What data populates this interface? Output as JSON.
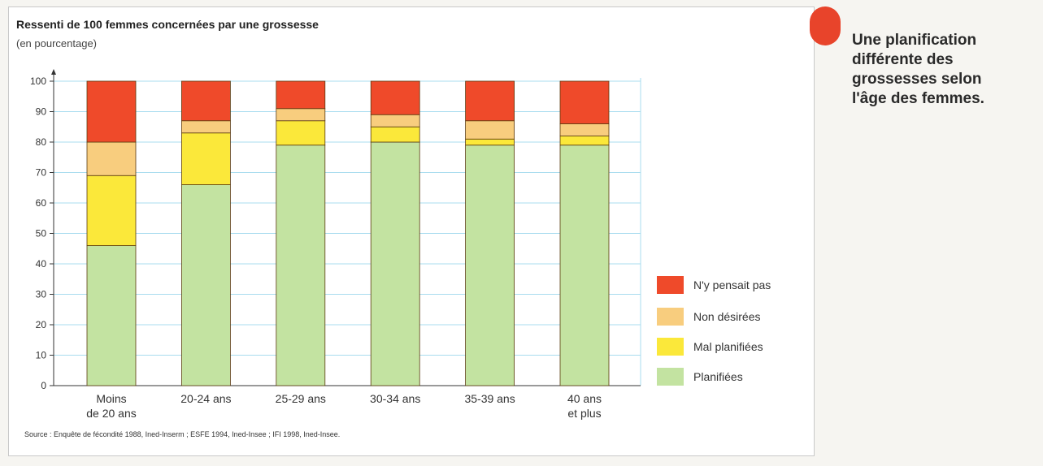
{
  "chart_data": {
    "type": "bar",
    "stacked": true,
    "title": "Ressenti de 100 femmes concernées par une grossesse",
    "subtitle": "(en pourcentage)",
    "categories": [
      [
        "Moins",
        "de 20 ans"
      ],
      [
        "20-24 ans"
      ],
      [
        "25-29 ans"
      ],
      [
        "30-34 ans"
      ],
      [
        "35-39 ans"
      ],
      [
        "40 ans",
        "et plus"
      ]
    ],
    "series": [
      {
        "name": "Planifiées",
        "color": "#c3e3a1",
        "values": [
          46,
          66,
          79,
          80,
          79,
          79
        ]
      },
      {
        "name": "Mal planifiées",
        "color": "#fbe83a",
        "values": [
          23,
          17,
          8,
          5,
          2,
          3
        ]
      },
      {
        "name": "Non désirées",
        "color": "#f8cd7e",
        "values": [
          11,
          4,
          4,
          4,
          6,
          4
        ]
      },
      {
        "name": "N'y pensait pas",
        "color": "#ef4a2a",
        "values": [
          20,
          13,
          9,
          11,
          13,
          14
        ]
      }
    ],
    "ylim": [
      0,
      100
    ],
    "yticks": [
      0,
      10,
      20,
      30,
      40,
      50,
      60,
      70,
      80,
      90,
      100
    ],
    "grid": true,
    "legend_position": "bottom-right",
    "legend_order": [
      "N'y pensait pas",
      "Non désirées",
      "Mal planifiées",
      "Planifiées"
    ],
    "source": "Source : Enquête de fécondité 1988, Ined-Inserm ; ESFE 1994, Ined-Insee ; IFI 1998, Ined-Insee."
  },
  "caption": {
    "lines": [
      "Une planification",
      "différente des",
      "grossesses selon",
      "l'âge des femmes."
    ]
  }
}
